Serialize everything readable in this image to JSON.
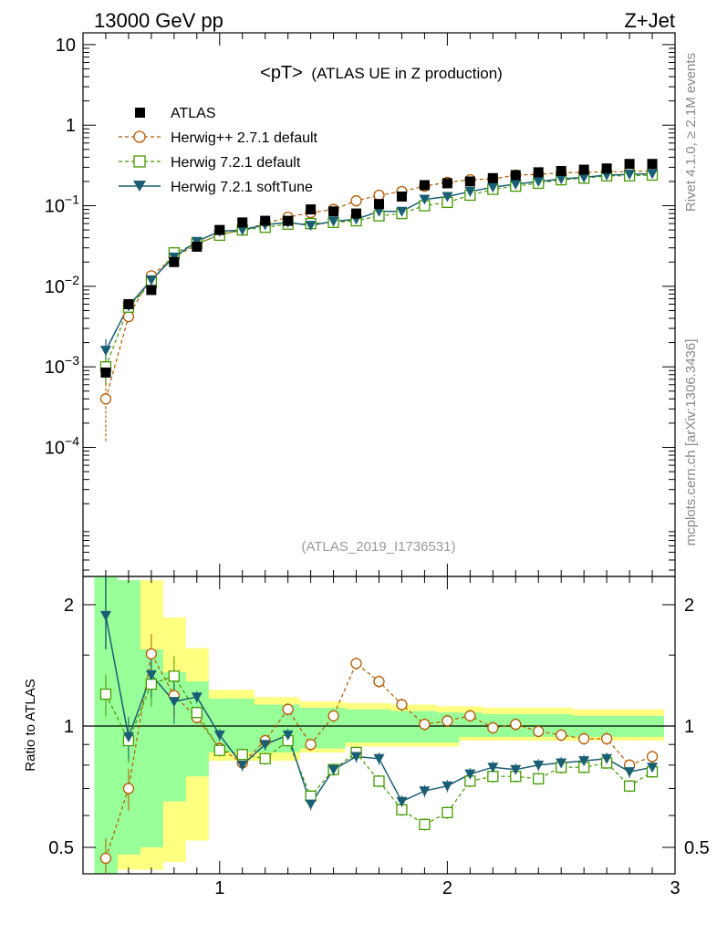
{
  "header": {
    "left": "13000 GeV pp",
    "right": "Z+Jet"
  },
  "side": {
    "rivet": "Rivet 4.1.0, ≥ 2.1M events",
    "mcplots": "mcplots.cern.ch [arXiv:1306.3436]"
  },
  "colors": {
    "atlas": "#000000",
    "herwigpp": "#b35900",
    "herwig721": "#449900",
    "softtune": "#1a5e73",
    "band_inner": "#99ff99",
    "band_outer": "#ffff80"
  },
  "chart_data": [
    {
      "type": "scatter",
      "title": "<pT>",
      "subtitle": "(ATLAS UE in Z production)",
      "analysis_label": "(ATLAS_2019_I1736531)",
      "yscale": "log",
      "ylim": [
        2.5e-06,
        14
      ],
      "xlim": [
        0.4,
        3.0
      ],
      "yticks": [
        {
          "value": 0.0001,
          "base": "10",
          "exp": "−4"
        },
        {
          "value": 0.001,
          "base": "10",
          "exp": "−3"
        },
        {
          "value": 0.01,
          "base": "10",
          "exp": "−2"
        },
        {
          "value": 0.1,
          "base": "10",
          "exp": "−1"
        },
        {
          "value": 1,
          "base": "1",
          "exp": ""
        },
        {
          "value": 10,
          "base": "10",
          "exp": ""
        }
      ],
      "x": [
        0.5,
        0.6,
        0.7,
        0.8,
        0.9,
        1.0,
        1.1,
        1.2,
        1.3,
        1.4,
        1.5,
        1.6,
        1.7,
        1.8,
        1.9,
        2.0,
        2.1,
        2.2,
        2.3,
        2.4,
        2.5,
        2.6,
        2.7,
        2.8,
        2.9
      ],
      "series": [
        {
          "name": "ATLAS",
          "marker": "square-filled",
          "values": [
            0.00085,
            0.006,
            0.009,
            0.02,
            0.031,
            0.05,
            0.062,
            0.065,
            0.065,
            0.09,
            0.085,
            0.08,
            0.105,
            0.13,
            0.18,
            0.19,
            0.2,
            0.22,
            0.24,
            0.26,
            0.27,
            0.28,
            0.29,
            0.33,
            0.33
          ]
        },
        {
          "name": "Herwig++ 2.7.1 default",
          "marker": "circle-open",
          "values": [
            0.0004,
            0.0042,
            0.0135,
            0.023,
            0.033,
            0.044,
            0.05,
            0.06,
            0.072,
            0.082,
            0.09,
            0.115,
            0.135,
            0.15,
            0.175,
            0.195,
            0.21,
            0.215,
            0.24,
            0.245,
            0.255,
            0.26,
            0.265,
            0.265,
            0.27
          ]
        },
        {
          "name": "Herwig 7.2.1 default",
          "marker": "square-open",
          "values": [
            0.001,
            0.0055,
            0.011,
            0.026,
            0.034,
            0.043,
            0.05,
            0.054,
            0.059,
            0.06,
            0.062,
            0.065,
            0.075,
            0.08,
            0.1,
            0.11,
            0.135,
            0.16,
            0.175,
            0.19,
            0.21,
            0.22,
            0.235,
            0.235,
            0.24
          ]
        },
        {
          "name": "Herwig 7.2.1 softTune",
          "marker": "triangle-down",
          "values": [
            0.0016,
            0.0057,
            0.012,
            0.023,
            0.036,
            0.048,
            0.05,
            0.058,
            0.062,
            0.057,
            0.064,
            0.068,
            0.085,
            0.085,
            0.12,
            0.13,
            0.15,
            0.17,
            0.185,
            0.2,
            0.215,
            0.225,
            0.24,
            0.245,
            0.25
          ]
        }
      ]
    },
    {
      "type": "scatter",
      "title": "",
      "ylabel": "Ratio to ATLAS",
      "yscale": "log",
      "ylim": [
        0.43,
        2.35
      ],
      "xlim": [
        0.4,
        3.0
      ],
      "yticks": [
        0.5,
        1,
        2
      ],
      "yticklabels": [
        "0.5",
        "1",
        "2"
      ],
      "xticks": [
        1,
        2,
        3
      ],
      "xticklabels": [
        "1",
        "2",
        "3"
      ],
      "x": [
        0.5,
        0.6,
        0.7,
        0.8,
        0.9,
        1.0,
        1.1,
        1.2,
        1.3,
        1.4,
        1.5,
        1.6,
        1.7,
        1.8,
        1.9,
        2.0,
        2.1,
        2.2,
        2.3,
        2.4,
        2.5,
        2.6,
        2.7,
        2.8,
        2.9
      ],
      "band_inner": [
        0.35,
        0.48,
        0.5,
        0.65,
        0.75,
        0.86,
        0.86,
        0.86,
        0.86,
        0.88,
        0.88,
        0.91,
        0.91,
        0.91,
        0.91,
        0.91,
        0.94,
        0.94,
        0.94,
        0.94,
        0.94,
        0.94,
        0.94,
        0.94,
        0.94
      ],
      "band_inner_hi": [
        3.0,
        2.3,
        1.55,
        1.36,
        1.29,
        1.17,
        1.17,
        1.13,
        1.13,
        1.11,
        1.11,
        1.1,
        1.1,
        1.09,
        1.09,
        1.08,
        1.08,
        1.07,
        1.07,
        1.07,
        1.07,
        1.06,
        1.06,
        1.06,
        1.06
      ],
      "band_outer_lo": [
        0.35,
        0.44,
        0.44,
        0.46,
        0.52,
        0.82,
        0.82,
        0.82,
        0.82,
        0.86,
        0.86,
        0.89,
        0.89,
        0.89,
        0.89,
        0.89,
        0.92,
        0.92,
        0.92,
        0.92,
        0.92,
        0.92,
        0.92,
        0.92,
        0.92
      ],
      "band_outer_hi": [
        3.0,
        2.3,
        2.3,
        1.86,
        1.56,
        1.23,
        1.23,
        1.18,
        1.18,
        1.15,
        1.15,
        1.14,
        1.14,
        1.13,
        1.13,
        1.12,
        1.12,
        1.11,
        1.11,
        1.11,
        1.11,
        1.1,
        1.1,
        1.1,
        1.1
      ],
      "series": [
        {
          "name": "Herwig++ 2.7.1 default",
          "values": [
            0.47,
            0.7,
            1.51,
            1.19,
            1.05,
            0.88,
            0.81,
            0.92,
            1.1,
            0.9,
            1.06,
            1.43,
            1.29,
            1.13,
            1.01,
            1.03,
            1.06,
            0.99,
            1.01,
            0.97,
            0.95,
            0.93,
            0.93,
            0.8,
            0.84
          ]
        },
        {
          "name": "Herwig 7.2.1 default",
          "values": [
            1.2,
            0.92,
            1.27,
            1.33,
            1.08,
            0.87,
            0.85,
            0.83,
            0.92,
            0.67,
            0.78,
            0.86,
            0.73,
            0.62,
            0.57,
            0.61,
            0.73,
            0.75,
            0.75,
            0.74,
            0.79,
            0.79,
            0.81,
            0.71,
            0.77
          ]
        },
        {
          "name": "Herwig 7.2.1 softTune",
          "values": [
            1.88,
            0.94,
            1.34,
            1.15,
            1.18,
            0.95,
            0.8,
            0.9,
            0.95,
            0.64,
            0.78,
            0.84,
            0.83,
            0.65,
            0.69,
            0.71,
            0.76,
            0.79,
            0.78,
            0.8,
            0.81,
            0.82,
            0.83,
            0.77,
            0.79
          ]
        }
      ]
    }
  ]
}
